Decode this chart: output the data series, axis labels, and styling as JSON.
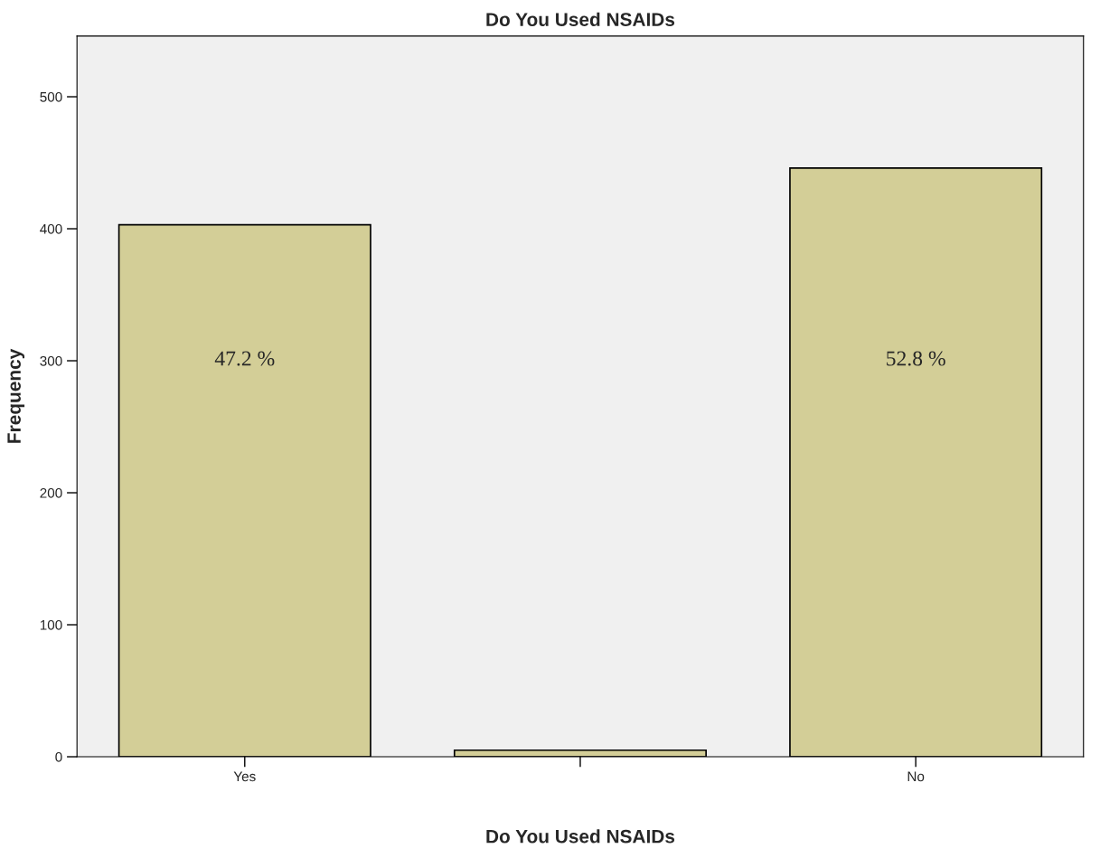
{
  "chart_data": {
    "type": "bar",
    "title": "Do You Used NSAIDs",
    "xlabel": "Do You Used NSAIDs",
    "ylabel": "Frequency",
    "categories": [
      "Yes",
      null,
      "No"
    ],
    "values": [
      403,
      5,
      446
    ],
    "annotations": [
      "47.2 %",
      "52.8 %"
    ],
    "color": "#d3ce97",
    "ylim": [
      0,
      546
    ],
    "yticks": [
      0,
      100,
      200,
      300,
      400,
      500
    ],
    "grid": false
  }
}
